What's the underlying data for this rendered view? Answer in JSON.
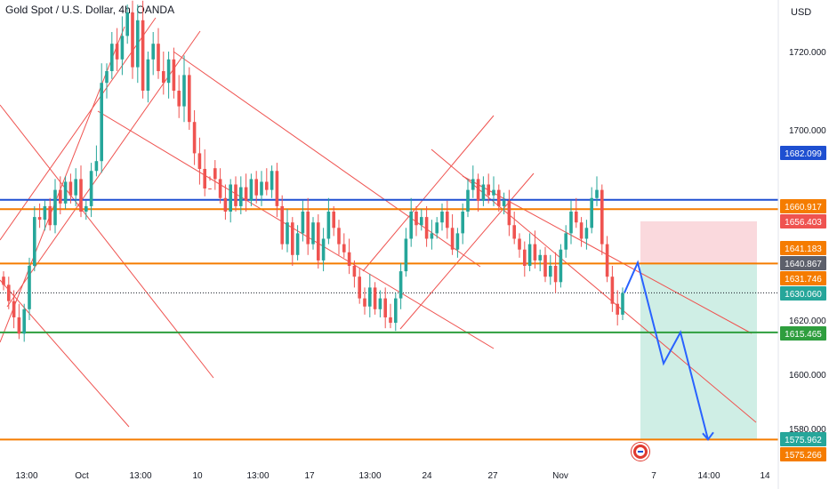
{
  "header": {
    "title": "Gold Spot / U.S. Dollar, 4h, OANDA",
    "currency": "USD"
  },
  "chart_data": {
    "type": "candlestick",
    "title": "Gold Spot / U.S. Dollar, 4h, OANDA",
    "y_axis": {
      "unit": "USD",
      "range": [
        1573,
        1738
      ],
      "ticks": [
        1580,
        1600,
        1620,
        1700,
        1720
      ]
    },
    "x_axis": {
      "ticks": [
        "13:00",
        "Oct",
        "13:00",
        "10",
        "13:00",
        "17",
        "13:00",
        "24",
        "27",
        "Nov",
        "7",
        "14:00",
        "14"
      ]
    },
    "price_levels": [
      {
        "value": 1682.099,
        "label": "1682.099",
        "color": "#1e4fd1"
      },
      {
        "value": 1660.917,
        "label": "1660.917",
        "color": "#f57c00"
      },
      {
        "value": 1640.867,
        "label": "1640.867",
        "color": "#f57c00"
      },
      {
        "value": 1630.06,
        "label": "1630.060",
        "color": "#131722",
        "style": "dotted"
      },
      {
        "value": 1615.465,
        "label": "1615.465",
        "color": "#2e9e3e"
      },
      {
        "value": 1575.962,
        "label": "1575.962",
        "color": "#f57c00"
      }
    ],
    "axis_tags": [
      {
        "value": 1682.099,
        "label": "1682.099",
        "color": "#1e4fd1"
      },
      {
        "value": 1660.917,
        "label": "1660.917",
        "color": "#f57c00"
      },
      {
        "value": 1656.403,
        "label": "1656.403",
        "color": "#ef5350"
      },
      {
        "value": 1641.183,
        "label": "1641.183",
        "color": "#f57c00"
      },
      {
        "value": 1640.867,
        "label": "1640.867",
        "color": "#5d606b"
      },
      {
        "value": 1631.746,
        "label": "1631.746",
        "color": "#f57c00"
      },
      {
        "value": 1630.06,
        "label": "1630.060",
        "color": "#26a69a"
      },
      {
        "value": 1615.465,
        "label": "1615.465",
        "color": "#2e9e3e"
      },
      {
        "value": 1575.962,
        "label": "1575.962",
        "color": "#26a69a"
      },
      {
        "value": 1575.266,
        "label": "1575.266",
        "color": "#f57c00"
      }
    ],
    "position": {
      "type": "short",
      "entry": 1640.867,
      "stop": 1656.403,
      "target": 1575.962
    },
    "projected_path": [
      1630.06,
      1641.183,
      1604.0,
      1615.465,
      1575.962
    ],
    "candles_close": [
      1633,
      1627,
      1621,
      1615,
      1624,
      1640,
      1658,
      1657,
      1662,
      1655,
      1668,
      1663,
      1671,
      1666,
      1672,
      1660,
      1662,
      1675,
      1692,
      1712,
      1715,
      1722,
      1718,
      1724,
      1730,
      1716,
      1728,
      1710,
      1718,
      1722,
      1715,
      1712,
      1718,
      1710,
      1706,
      1714,
      1702,
      1694,
      1690,
      1685,
      1676,
      1672,
      1665,
      1660,
      1670,
      1662,
      1669,
      1664,
      1672,
      1666,
      1671,
      1668,
      1675,
      1662,
      1648,
      1656,
      1644,
      1652,
      1660,
      1648,
      1656,
      1642,
      1650,
      1660,
      1654,
      1648,
      1645,
      1640,
      1636,
      1628,
      1625,
      1632,
      1624,
      1628,
      1621,
      1619,
      1628,
      1638,
      1650,
      1660,
      1655,
      1658,
      1650,
      1652,
      1656,
      1660,
      1654,
      1646,
      1652,
      1660,
      1668,
      1672,
      1664,
      1670,
      1666,
      1668,
      1662,
      1664,
      1655,
      1650,
      1646,
      1640,
      1648,
      1642,
      1644,
      1636,
      1640,
      1634,
      1646,
      1652,
      1660,
      1656,
      1650,
      1654,
      1665,
      1668,
      1648,
      1636,
      1626,
      1622,
      1630
    ]
  }
}
